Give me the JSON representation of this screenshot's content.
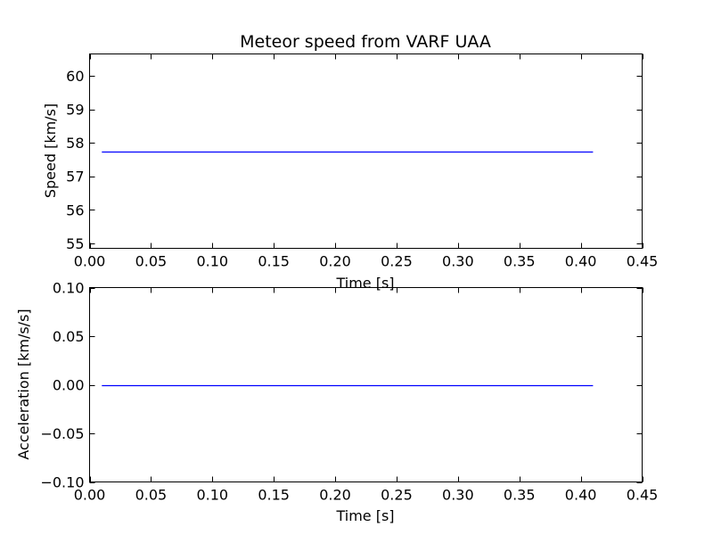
{
  "chart_data": [
    {
      "type": "line",
      "title": "Meteor speed from  VARF UAA",
      "xlabel": "Time [s]",
      "ylabel": "Speed [km/s]",
      "xlim": [
        0.0,
        0.45
      ],
      "ylim": [
        54.85,
        60.65
      ],
      "xticks": [
        0.0,
        0.05,
        0.1,
        0.15,
        0.2,
        0.25,
        0.3,
        0.35,
        0.4,
        0.45
      ],
      "xtick_labels": [
        "0.00",
        "0.05",
        "0.10",
        "0.15",
        "0.20",
        "0.25",
        "0.30",
        "0.35",
        "0.40",
        "0.45"
      ],
      "yticks": [
        55,
        56,
        57,
        58,
        59,
        60
      ],
      "ytick_labels": [
        "55",
        "56",
        "57",
        "58",
        "59",
        "60"
      ],
      "grid": false,
      "series": [
        {
          "color": "#0000ff",
          "x": [
            0.01,
            0.41
          ],
          "y": [
            57.75,
            57.75
          ]
        }
      ]
    },
    {
      "type": "line",
      "title": "",
      "xlabel": "Time [s]",
      "ylabel": "Acceleration [km/s/s]",
      "xlim": [
        0.0,
        0.45
      ],
      "ylim": [
        -0.1,
        0.1
      ],
      "xticks": [
        0.0,
        0.05,
        0.1,
        0.15,
        0.2,
        0.25,
        0.3,
        0.35,
        0.4,
        0.45
      ],
      "xtick_labels": [
        "0.00",
        "0.05",
        "0.10",
        "0.15",
        "0.20",
        "0.25",
        "0.30",
        "0.35",
        "0.40",
        "0.45"
      ],
      "yticks": [
        -0.1,
        -0.05,
        0.0,
        0.05,
        0.1
      ],
      "ytick_labels": [
        "−0.10",
        "−0.05",
        "0.00",
        "0.05",
        "0.10"
      ],
      "grid": false,
      "series": [
        {
          "color": "#0000ff",
          "x": [
            0.01,
            0.41
          ],
          "y": [
            0.0,
            0.0
          ]
        }
      ]
    }
  ]
}
